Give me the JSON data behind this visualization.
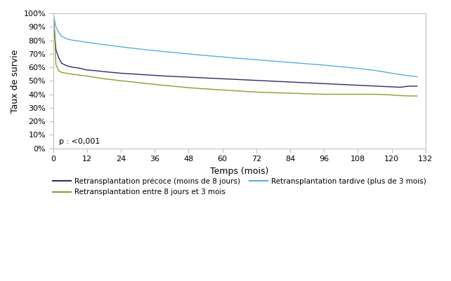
{
  "title": "",
  "xlabel": "Temps (mois)",
  "ylabel": "Taux de survie",
  "xlim": [
    0,
    132
  ],
  "ylim": [
    0,
    1.0
  ],
  "xticks": [
    0,
    12,
    24,
    36,
    48,
    60,
    72,
    84,
    96,
    108,
    120,
    132
  ],
  "yticks": [
    0.0,
    0.1,
    0.2,
    0.3,
    0.4,
    0.5,
    0.6,
    0.7,
    0.8,
    0.9,
    1.0
  ],
  "ytick_labels": [
    "0%",
    "10%",
    "20%",
    "30%",
    "40%",
    "50%",
    "60%",
    "70%",
    "80%",
    "90%",
    "100%"
  ],
  "pvalue_text": "p : <0,001",
  "legend_entries": [
    "Retransplantation précoce (moins de 8 jours)",
    "Retransplantation entre 8 jours et 3 mois",
    "Retransplantation tardive (plus de 3 mois)"
  ],
  "colors": {
    "precoce": "#2e2b6b",
    "entre": "#8b9a2a",
    "tardive": "#5aace0"
  },
  "precoce_x": [
    0,
    0.3,
    1,
    2,
    3,
    5,
    7,
    9,
    12,
    15,
    18,
    21,
    24,
    27,
    30,
    33,
    36,
    39,
    42,
    45,
    48,
    51,
    54,
    57,
    60,
    63,
    66,
    69,
    72,
    75,
    78,
    81,
    84,
    87,
    90,
    93,
    96,
    99,
    102,
    105,
    108,
    111,
    114,
    117,
    120,
    123,
    126,
    129
  ],
  "precoce_y": [
    1.0,
    0.92,
    0.73,
    0.67,
    0.63,
    0.61,
    0.6,
    0.595,
    0.58,
    0.575,
    0.568,
    0.562,
    0.556,
    0.552,
    0.548,
    0.544,
    0.54,
    0.536,
    0.533,
    0.53,
    0.527,
    0.524,
    0.521,
    0.518,
    0.515,
    0.512,
    0.509,
    0.506,
    0.503,
    0.5,
    0.497,
    0.494,
    0.491,
    0.488,
    0.485,
    0.482,
    0.479,
    0.476,
    0.473,
    0.47,
    0.467,
    0.464,
    0.461,
    0.458,
    0.455,
    0.452,
    0.46,
    0.46
  ],
  "entre_x": [
    0,
    0.5,
    1,
    2,
    3,
    5,
    7,
    9,
    12,
    15,
    18,
    21,
    24,
    27,
    30,
    33,
    36,
    39,
    42,
    45,
    48,
    51,
    54,
    57,
    60,
    63,
    66,
    69,
    72,
    75,
    78,
    81,
    84,
    87,
    90,
    93,
    96,
    99,
    102,
    105,
    108,
    111,
    114,
    117,
    120,
    123,
    126,
    129
  ],
  "entre_y": [
    1.0,
    0.88,
    0.62,
    0.575,
    0.562,
    0.555,
    0.548,
    0.543,
    0.535,
    0.525,
    0.515,
    0.508,
    0.5,
    0.494,
    0.487,
    0.48,
    0.473,
    0.467,
    0.461,
    0.455,
    0.449,
    0.444,
    0.44,
    0.436,
    0.432,
    0.428,
    0.424,
    0.42,
    0.416,
    0.414,
    0.412,
    0.41,
    0.408,
    0.406,
    0.404,
    0.402,
    0.4,
    0.4,
    0.4,
    0.4,
    0.4,
    0.4,
    0.4,
    0.398,
    0.395,
    0.39,
    0.388,
    0.387
  ],
  "tardive_x": [
    0,
    0.3,
    1,
    2,
    3,
    5,
    7,
    9,
    12,
    15,
    18,
    21,
    24,
    27,
    30,
    33,
    36,
    39,
    42,
    45,
    48,
    51,
    54,
    57,
    60,
    63,
    66,
    69,
    72,
    75,
    78,
    81,
    84,
    87,
    90,
    93,
    96,
    99,
    102,
    105,
    108,
    111,
    114,
    117,
    120,
    123,
    126,
    129
  ],
  "tardive_y": [
    1.0,
    0.97,
    0.9,
    0.86,
    0.83,
    0.81,
    0.8,
    0.795,
    0.785,
    0.776,
    0.768,
    0.76,
    0.752,
    0.744,
    0.737,
    0.73,
    0.724,
    0.717,
    0.711,
    0.705,
    0.699,
    0.693,
    0.688,
    0.682,
    0.677,
    0.671,
    0.666,
    0.661,
    0.656,
    0.651,
    0.646,
    0.641,
    0.636,
    0.631,
    0.626,
    0.621,
    0.616,
    0.61,
    0.604,
    0.598,
    0.592,
    0.584,
    0.577,
    0.567,
    0.556,
    0.546,
    0.537,
    0.53
  ]
}
